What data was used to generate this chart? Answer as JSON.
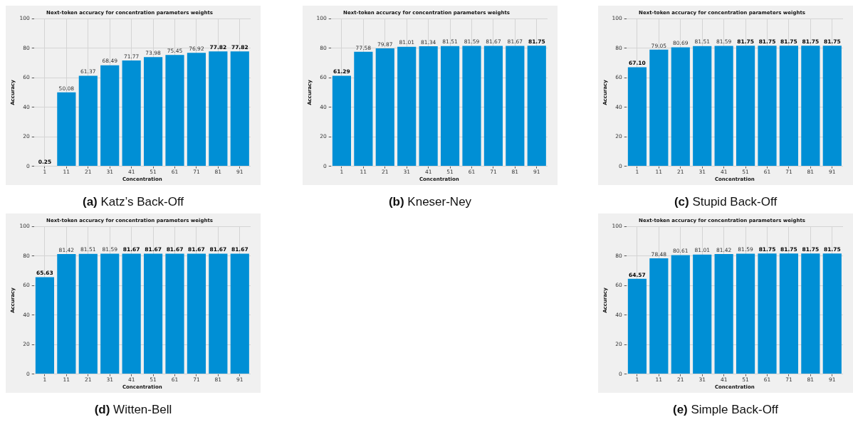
{
  "chart_data": [
    {
      "type": "bar",
      "title": "Next-token accuracy for concentration parameters weights",
      "xlabel": "Concentration",
      "ylabel": "Accuracy",
      "categories": [
        "1",
        "11",
        "21",
        "31",
        "41",
        "51",
        "61",
        "71",
        "81",
        "91"
      ],
      "values": [
        0.25,
        50.08,
        61.37,
        68.49,
        71.77,
        73.98,
        75.45,
        76.92,
        77.82,
        77.82
      ],
      "value_labels": [
        "0.25",
        "50.08",
        "61.37",
        "68.49",
        "71.77",
        "73.98",
        "75.45",
        "76.92",
        "77.82",
        "77.82"
      ],
      "color": "#008fd5",
      "ylim": [
        0,
        100
      ],
      "yticks": [
        0,
        20,
        40,
        60,
        80,
        100
      ],
      "grid": true,
      "annotations": [
        "(a) Katz’s Back-Off"
      ]
    },
    {
      "type": "bar",
      "title": "Next-token accuracy for concentration parameters weights",
      "xlabel": "Concentration",
      "ylabel": "Accuracy",
      "categories": [
        "1",
        "11",
        "21",
        "31",
        "41",
        "51",
        "61",
        "71",
        "81",
        "91"
      ],
      "values": [
        61.29,
        77.58,
        79.87,
        81.01,
        81.34,
        81.51,
        81.59,
        81.67,
        81.67,
        81.75
      ],
      "value_labels": [
        "61.29",
        "77.58",
        "79.87",
        "81.01",
        "81.34",
        "81.51",
        "81.59",
        "81.67",
        "81.67",
        "81.75"
      ],
      "color": "#008fd5",
      "ylim": [
        0,
        100
      ],
      "yticks": [
        0,
        20,
        40,
        60,
        80,
        100
      ],
      "grid": true,
      "annotations": [
        "(b) Kneser-Ney"
      ]
    },
    {
      "type": "bar",
      "title": "Next-token accuracy for concentration parameters weights",
      "xlabel": "Concentration",
      "ylabel": "Accuracy",
      "categories": [
        "1",
        "11",
        "21",
        "31",
        "41",
        "51",
        "61",
        "71",
        "81",
        "91"
      ],
      "values": [
        67.1,
        79.05,
        80.69,
        81.51,
        81.59,
        81.75,
        81.75,
        81.75,
        81.75,
        81.75
      ],
      "value_labels": [
        "67.10",
        "79.05",
        "80.69",
        "81.51",
        "81.59",
        "81.75",
        "81.75",
        "81.75",
        "81.75",
        "81.75"
      ],
      "color": "#008fd5",
      "ylim": [
        0,
        100
      ],
      "yticks": [
        0,
        20,
        40,
        60,
        80,
        100
      ],
      "grid": true,
      "annotations": [
        "(c) Stupid Back-Off"
      ]
    },
    {
      "type": "bar",
      "title": "Next-token accuracy for concentration parameters weights",
      "xlabel": "Concentration",
      "ylabel": "Accuracy",
      "categories": [
        "1",
        "11",
        "21",
        "31",
        "41",
        "51",
        "61",
        "71",
        "81",
        "91"
      ],
      "values": [
        65.63,
        81.42,
        81.51,
        81.59,
        81.67,
        81.67,
        81.67,
        81.67,
        81.67,
        81.67
      ],
      "value_labels": [
        "65.63",
        "81.42",
        "81.51",
        "81.59",
        "81.67",
        "81.67",
        "81.67",
        "81.67",
        "81.67",
        "81.67"
      ],
      "color": "#008fd5",
      "ylim": [
        0,
        100
      ],
      "yticks": [
        0,
        20,
        40,
        60,
        80,
        100
      ],
      "grid": true,
      "annotations": [
        "(d) Witten-Bell"
      ]
    },
    {
      "type": "bar",
      "title": "Next-token accuracy for concentration parameters weights",
      "xlabel": "Concentration",
      "ylabel": "Accuracy",
      "categories": [
        "1",
        "11",
        "21",
        "31",
        "41",
        "51",
        "61",
        "71",
        "81",
        "91"
      ],
      "values": [
        64.57,
        78.48,
        80.61,
        81.01,
        81.42,
        81.59,
        81.75,
        81.75,
        81.75,
        81.75
      ],
      "value_labels": [
        "64.57",
        "78.48",
        "80.61",
        "81.01",
        "81.42",
        "81.59",
        "81.75",
        "81.75",
        "81.75",
        "81.75"
      ],
      "color": "#008fd5",
      "ylim": [
        0,
        100
      ],
      "yticks": [
        0,
        20,
        40,
        60,
        80,
        100
      ],
      "grid": true,
      "annotations": [
        "(e) Simple Back-Off"
      ]
    }
  ]
}
